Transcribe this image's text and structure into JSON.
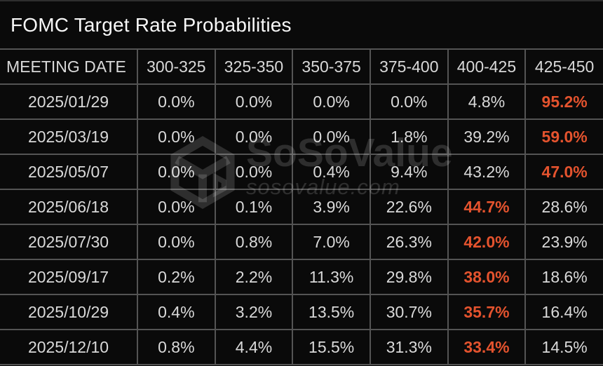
{
  "title": "FOMC Target Rate Probabilities",
  "colors": {
    "background": "#0a0a0a",
    "grid": "#545454",
    "text": "#d9d9d9",
    "title_text": "#f7f7f7",
    "highlight": "#e4532e",
    "watermark": "rgba(255,255,255,0.15)"
  },
  "watermark": {
    "brand": "SoSoValue",
    "domain": "sosovalue.com",
    "icon": "sosovalue-cube-icon"
  },
  "table": {
    "columns": [
      "MEETING DATE",
      "300-325",
      "325-350",
      "350-375",
      "375-400",
      "400-425",
      "425-450"
    ],
    "rows": [
      {
        "date": "2025/01/29",
        "values": [
          "0.0%",
          "0.0%",
          "0.0%",
          "0.0%",
          "4.8%",
          "95.2%"
        ],
        "highlight_index": 5
      },
      {
        "date": "2025/03/19",
        "values": [
          "0.0%",
          "0.0%",
          "0.0%",
          "1.8%",
          "39.2%",
          "59.0%"
        ],
        "highlight_index": 5
      },
      {
        "date": "2025/05/07",
        "values": [
          "0.0%",
          "0.0%",
          "0.4%",
          "9.4%",
          "43.2%",
          "47.0%"
        ],
        "highlight_index": 5
      },
      {
        "date": "2025/06/18",
        "values": [
          "0.0%",
          "0.1%",
          "3.9%",
          "22.6%",
          "44.7%",
          "28.6%"
        ],
        "highlight_index": 4
      },
      {
        "date": "2025/07/30",
        "values": [
          "0.0%",
          "0.8%",
          "7.0%",
          "26.3%",
          "42.0%",
          "23.9%"
        ],
        "highlight_index": 4
      },
      {
        "date": "2025/09/17",
        "values": [
          "0.2%",
          "2.2%",
          "11.3%",
          "29.8%",
          "38.0%",
          "18.6%"
        ],
        "highlight_index": 4
      },
      {
        "date": "2025/10/29",
        "values": [
          "0.4%",
          "3.2%",
          "13.5%",
          "30.7%",
          "35.7%",
          "16.4%"
        ],
        "highlight_index": 4
      },
      {
        "date": "2025/12/10",
        "values": [
          "0.8%",
          "4.4%",
          "15.5%",
          "31.3%",
          "33.4%",
          "14.5%"
        ],
        "highlight_index": 4
      }
    ]
  },
  "chart_data": {
    "type": "table",
    "title": "FOMC Target Rate Probabilities",
    "unit": "%",
    "categories": [
      "2025/01/29",
      "2025/03/19",
      "2025/05/07",
      "2025/06/18",
      "2025/07/30",
      "2025/09/17",
      "2025/10/29",
      "2025/12/10"
    ],
    "series": [
      {
        "name": "300-325",
        "values": [
          0.0,
          0.0,
          0.0,
          0.0,
          0.0,
          0.2,
          0.4,
          0.8
        ]
      },
      {
        "name": "325-350",
        "values": [
          0.0,
          0.0,
          0.0,
          0.1,
          0.8,
          2.2,
          3.2,
          4.4
        ]
      },
      {
        "name": "350-375",
        "values": [
          0.0,
          0.0,
          0.4,
          3.9,
          7.0,
          11.3,
          13.5,
          15.5
        ]
      },
      {
        "name": "375-400",
        "values": [
          0.0,
          1.8,
          9.4,
          22.6,
          26.3,
          29.8,
          30.7,
          31.3
        ]
      },
      {
        "name": "400-425",
        "values": [
          4.8,
          39.2,
          43.2,
          44.7,
          42.0,
          38.0,
          35.7,
          33.4
        ]
      },
      {
        "name": "425-450",
        "values": [
          95.2,
          59.0,
          47.0,
          28.6,
          23.9,
          18.6,
          16.4,
          14.5
        ]
      }
    ],
    "highlight_rule": "highest probability per meeting date rendered bold orange"
  }
}
